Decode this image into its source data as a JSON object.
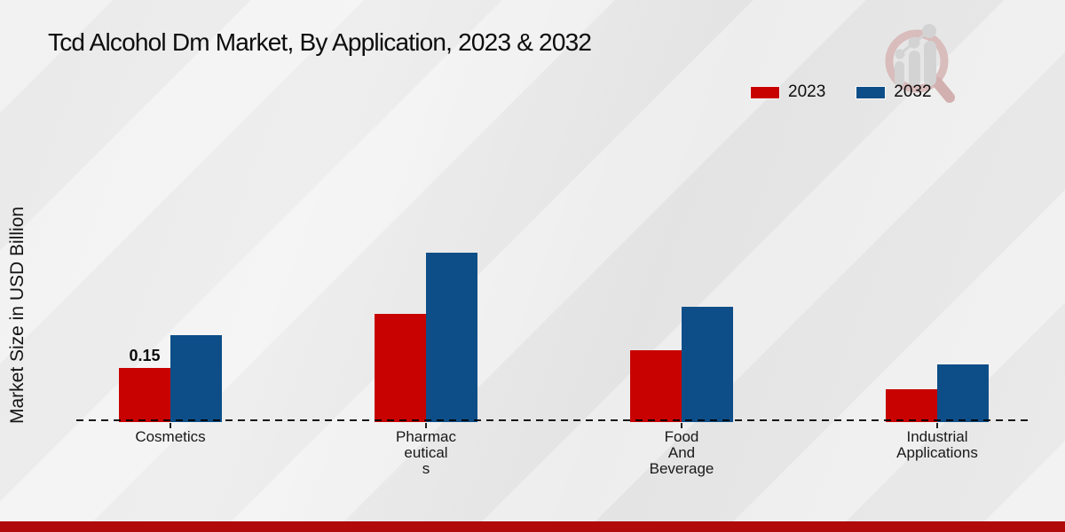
{
  "title": "Tcd Alcohol Dm Market, By Application, 2023 & 2032",
  "colors": {
    "series": [
      "#c80201",
      "#0d4e88"
    ],
    "footer_bar": "#b00a0a",
    "axis": "#1a1a1a",
    "value_label": "#0a0a0a",
    "watermark_ring": "#d9bcbc",
    "watermark_bars": "#d3d3d3"
  },
  "icons": {
    "watermark": "magnifier-bar-chart-logo-icon"
  },
  "chart_data": {
    "type": "bar",
    "title": "Tcd Alcohol Dm Market, By Application, 2023 & 2032",
    "ylabel": "Market Size in USD Billion",
    "xlabel": "",
    "categories": [
      "Cosmetics",
      "Pharmaceuticals",
      "Food And Beverage",
      "Industrial Applications"
    ],
    "category_label_lines": [
      [
        "Cosmetics"
      ],
      [
        "Pharmac",
        "eutical",
        "s"
      ],
      [
        "Food",
        "And",
        "Beverage"
      ],
      [
        "Industrial",
        "Applications"
      ]
    ],
    "series": [
      {
        "name": "2023",
        "values": [
          0.15,
          0.3,
          0.2,
          0.09
        ]
      },
      {
        "name": "2032",
        "values": [
          0.24,
          0.47,
          0.32,
          0.16
        ]
      }
    ],
    "bar_value_labels": [
      {
        "category": "Cosmetics",
        "series": "2023",
        "text": "0.15"
      }
    ],
    "ylim": [
      0,
      0.5
    ],
    "grid": false,
    "y_axis_ticks_visible": false,
    "baseline_style": "dashed",
    "legend_position": "top-right"
  }
}
